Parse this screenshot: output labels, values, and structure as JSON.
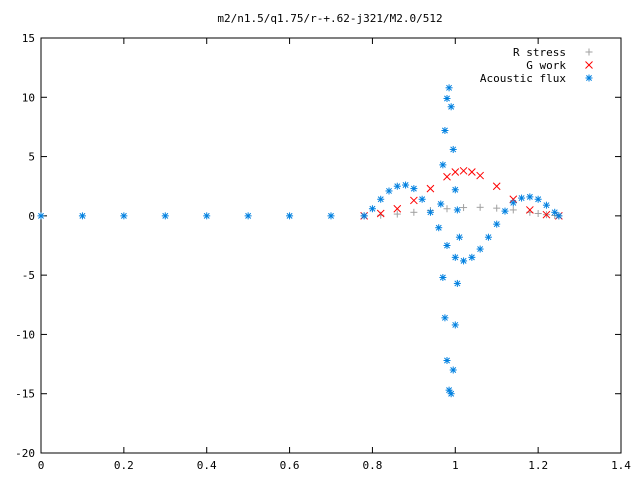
{
  "chart_data": {
    "type": "scatter",
    "title": "m2/n1.5/q1.75/r-+.62-j321/M2.0/512",
    "xlabel": "",
    "ylabel": "",
    "xlim": [
      0,
      1.4
    ],
    "ylim": [
      -20,
      15
    ],
    "xticks": [
      "0",
      "0.2",
      "0.4",
      "0.6",
      "0.8",
      "1",
      "1.2",
      "1.4"
    ],
    "yticks": [
      "-20",
      "-15",
      "-10",
      "-5",
      "0",
      "5",
      "10",
      "15"
    ],
    "grid": false,
    "legend_position": "top-right",
    "series": [
      {
        "name": "R stress",
        "marker": "+",
        "color": "#a0a0a0",
        "x": [
          0.78,
          0.82,
          0.86,
          0.9,
          0.94,
          0.98,
          1.02,
          1.06,
          1.1,
          1.14,
          1.18,
          1.2,
          1.22,
          1.24,
          1.25
        ],
        "y": [
          0.0,
          0.05,
          0.15,
          0.3,
          0.45,
          0.6,
          0.7,
          0.72,
          0.65,
          0.5,
          0.3,
          0.2,
          0.1,
          0.03,
          0.0
        ]
      },
      {
        "name": "G work",
        "marker": "x",
        "color": "#ff0000",
        "x": [
          0.78,
          0.82,
          0.86,
          0.9,
          0.94,
          0.98,
          1.0,
          1.02,
          1.04,
          1.06,
          1.1,
          1.14,
          1.18,
          1.22,
          1.25
        ],
        "y": [
          0.0,
          0.2,
          0.6,
          1.3,
          2.3,
          3.3,
          3.7,
          3.8,
          3.7,
          3.4,
          2.5,
          1.4,
          0.5,
          0.1,
          0.0
        ]
      },
      {
        "name": "Acoustic flux",
        "marker": "*",
        "color": "#0080e0",
        "x": [
          0.0,
          0.1,
          0.2,
          0.3,
          0.4,
          0.5,
          0.6,
          0.7,
          0.78,
          0.8,
          0.82,
          0.84,
          0.86,
          0.88,
          0.9,
          0.92,
          0.94,
          0.96,
          0.98,
          1.0,
          1.02,
          1.04,
          1.06,
          1.08,
          1.1,
          1.12,
          1.14,
          1.16,
          1.18,
          1.2,
          1.22,
          1.24,
          1.25,
          0.965,
          0.97,
          0.975,
          0.98,
          0.985,
          0.99,
          0.995,
          1.0,
          1.005,
          1.01,
          0.97,
          0.975,
          0.98,
          0.985,
          0.99,
          0.995,
          1.0,
          1.005
        ],
        "y": [
          0.0,
          0.0,
          0.0,
          0.0,
          0.0,
          0.0,
          0.0,
          0.0,
          0.0,
          0.6,
          1.4,
          2.1,
          2.5,
          2.6,
          2.3,
          1.4,
          0.3,
          -1.0,
          -2.5,
          -3.5,
          -3.8,
          -3.5,
          -2.8,
          -1.8,
          -0.7,
          0.4,
          1.1,
          1.5,
          1.6,
          1.4,
          0.9,
          0.3,
          0.0,
          1.0,
          4.3,
          7.2,
          9.9,
          10.8,
          9.2,
          5.6,
          2.2,
          0.5,
          -1.8,
          -5.2,
          -8.6,
          -12.2,
          -14.7,
          -15.0,
          -13.0,
          -9.2,
          -5.7
        ]
      }
    ]
  }
}
